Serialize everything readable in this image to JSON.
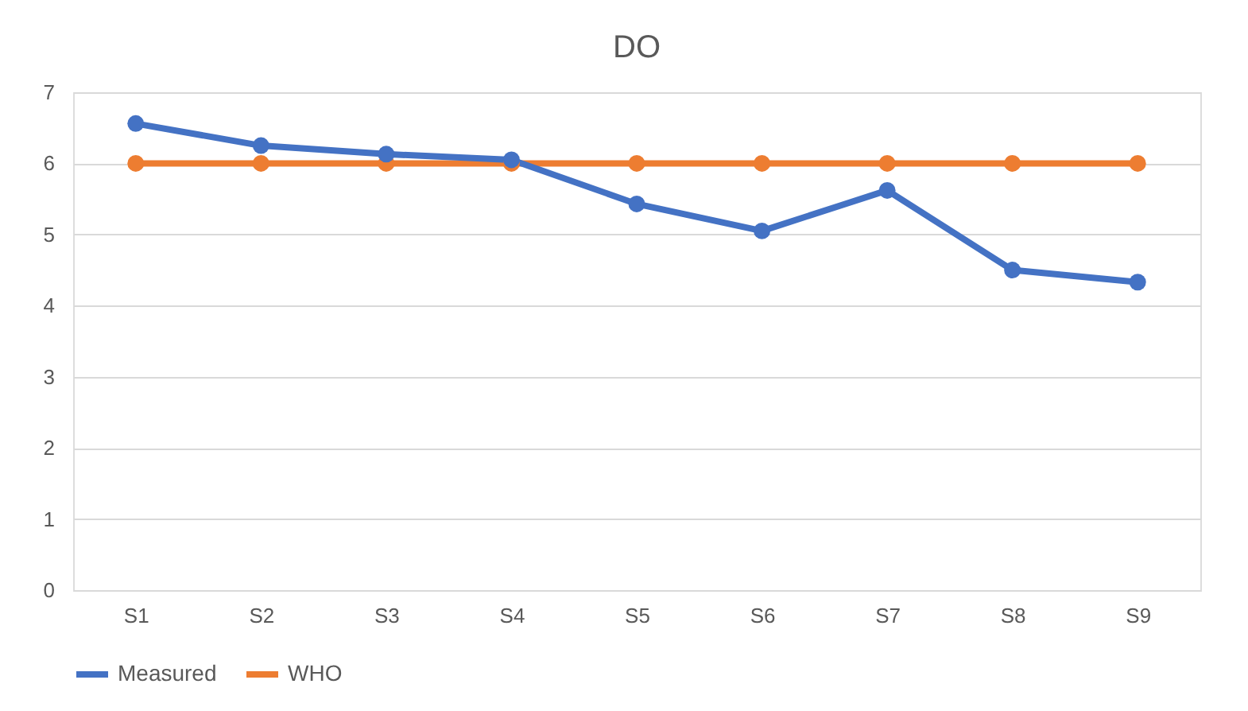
{
  "chart_data": {
    "type": "line",
    "title": "DO",
    "categories": [
      "S1",
      "S2",
      "S3",
      "S4",
      "S5",
      "S6",
      "S7",
      "S8",
      "S9"
    ],
    "series": [
      {
        "name": "Measured",
        "color": "#4472c4",
        "values": [
          6.56,
          6.25,
          6.13,
          6.05,
          5.43,
          5.05,
          5.62,
          4.5,
          4.33
        ]
      },
      {
        "name": "WHO",
        "color": "#ed7d31",
        "values": [
          6,
          6,
          6,
          6,
          6,
          6,
          6,
          6,
          6
        ]
      }
    ],
    "ylim": [
      0,
      7
    ],
    "yticks": [
      0,
      1,
      2,
      3,
      4,
      5,
      6,
      7
    ],
    "grid": "y",
    "legend": "bottom",
    "marker": "circle",
    "line_style": "solid"
  }
}
